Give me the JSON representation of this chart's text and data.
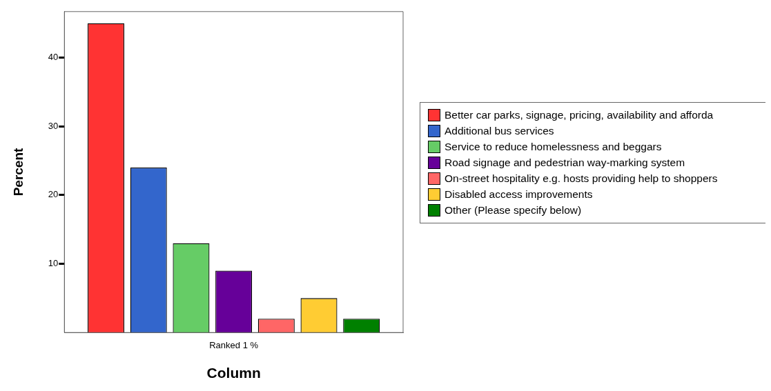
{
  "chart_data": {
    "type": "bar",
    "xlabel": "Column",
    "ylabel": "Percent",
    "categories": [
      "Ranked 1 %"
    ],
    "series": [
      {
        "name": "Better car parks, signage, pricing, availability and afforda",
        "color": "#ff3333",
        "values": [
          45
        ]
      },
      {
        "name": "Additional bus services",
        "color": "#3366cc",
        "values": [
          24
        ]
      },
      {
        "name": "Service to reduce homelessness and beggars",
        "color": "#66cc66",
        "values": [
          13
        ]
      },
      {
        "name": "Road signage and pedestrian way-marking system",
        "color": "#660099",
        "values": [
          9
        ]
      },
      {
        "name": "On-street hospitality e.g. hosts providing help to shoppers",
        "color": "#ff6666",
        "values": [
          2
        ]
      },
      {
        "name": "Disabled access improvements",
        "color": "#ffcc33",
        "values": [
          5
        ]
      },
      {
        "name": "Other (Please specify below)",
        "color": "#008000",
        "values": [
          2
        ]
      }
    ],
    "ylim": [
      0,
      46.7
    ],
    "yticks": [
      10,
      20,
      30,
      40
    ],
    "grid": false,
    "legend": "right"
  }
}
